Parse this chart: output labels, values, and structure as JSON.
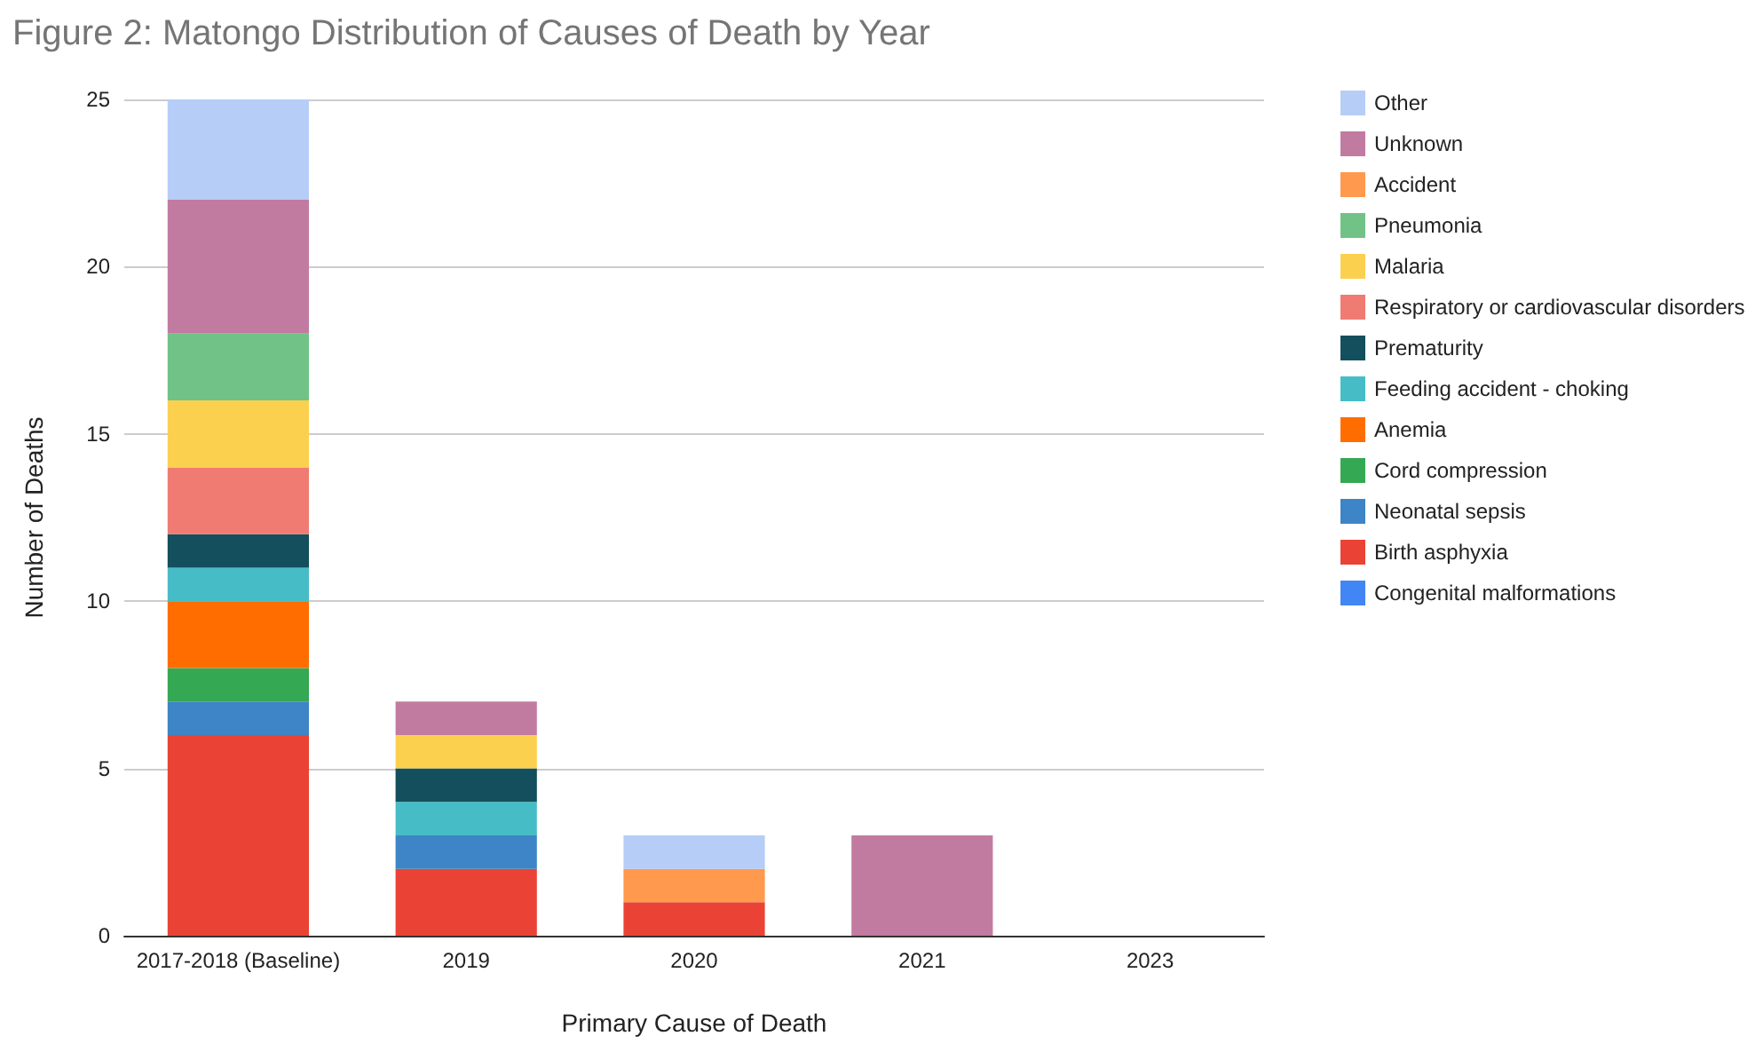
{
  "chart_data": {
    "type": "bar",
    "title": "Figure 2: Matongo Distribution of Causes of Death by Year",
    "xlabel": "Primary Cause of Death",
    "ylabel": "Number of Deaths",
    "categories": [
      "2017-2018 (Baseline)",
      "2019",
      "2020",
      "2021",
      "2023"
    ],
    "stacked": true,
    "ylim": [
      0,
      25
    ],
    "yticks": [
      0,
      5,
      10,
      15,
      20,
      25
    ],
    "grid": "y",
    "legend": "right",
    "series": [
      {
        "name": "Congenital malformations",
        "color": "#4285f4",
        "values": [
          0,
          0,
          0,
          0,
          0
        ]
      },
      {
        "name": "Birth asphyxia",
        "color": "#ea4335",
        "values": [
          6,
          2,
          1,
          0,
          0
        ]
      },
      {
        "name": "Neonatal sepsis",
        "color": "#3d85c6",
        "values": [
          1,
          1,
          0,
          0,
          0
        ]
      },
      {
        "name": "Cord compression",
        "color": "#34a853",
        "values": [
          1,
          0,
          0,
          0,
          0
        ]
      },
      {
        "name": "Anemia",
        "color": "#ff6d01",
        "values": [
          2,
          0,
          0,
          0,
          0
        ]
      },
      {
        "name": "Feeding accident - choking",
        "color": "#46bdc6",
        "values": [
          1,
          1,
          0,
          0,
          0
        ]
      },
      {
        "name": "Prematurity",
        "color": "#134f5c",
        "values": [
          1,
          1,
          0,
          0,
          0
        ]
      },
      {
        "name": "Respiratory or cardiovascular disorders",
        "color": "#f07b72",
        "values": [
          2,
          0,
          0,
          0,
          0
        ]
      },
      {
        "name": "Malaria",
        "color": "#fcd04f",
        "values": [
          2,
          1,
          0,
          0,
          0
        ]
      },
      {
        "name": "Pneumonia",
        "color": "#71c287",
        "values": [
          2,
          0,
          0,
          0,
          0
        ]
      },
      {
        "name": "Accident",
        "color": "#ff994d",
        "values": [
          0,
          0,
          1,
          0,
          0
        ]
      },
      {
        "name": "Unknown",
        "color": "#c27ba0",
        "values": [
          4,
          1,
          0,
          3,
          0
        ]
      },
      {
        "name": "Other",
        "color": "#b5cdf7",
        "values": [
          3,
          0,
          1,
          0,
          0
        ]
      }
    ]
  }
}
